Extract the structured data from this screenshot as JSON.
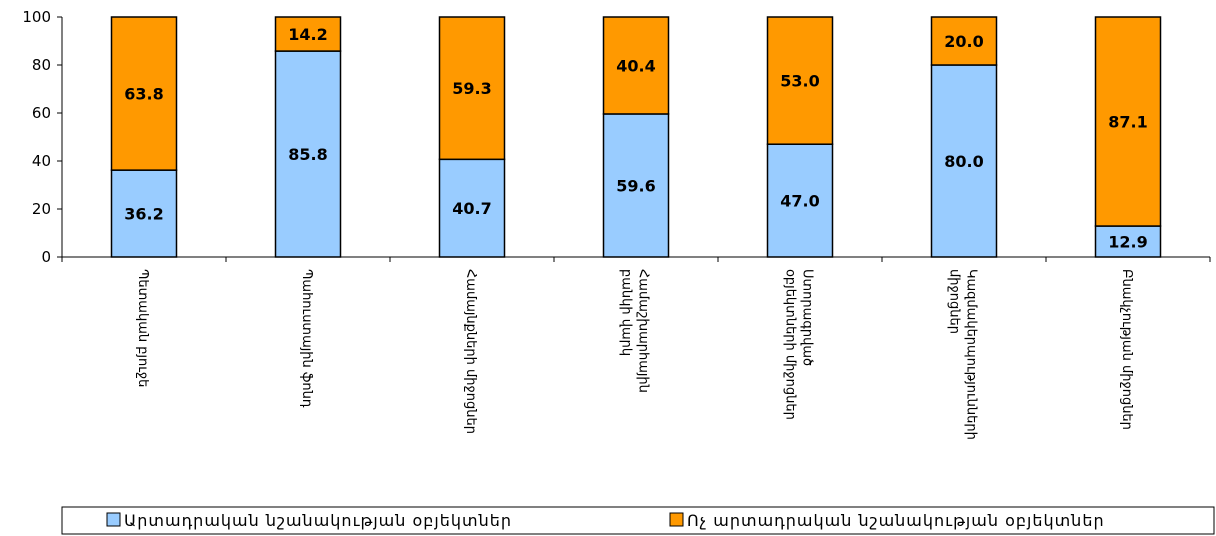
{
  "chart_data": {
    "type": "bar",
    "stacked": true,
    "categories": [
      [
        "Պետական բյուջե"
      ],
      [
        "Պահուստային ֆոնդ"
      ],
      [
        "Համայնքների միջոցներ"
      ],
      [
        "Համաշխարհային",
        "բանկի վարկ"
      ],
      [
        "Ստորագրված",
        "օբյեկտների միջոցներ"
      ],
      [
        "Կազմակերպությունների",
        "միջոցներ"
      ],
      [
        "Բնակչության միջոցներ"
      ]
    ],
    "series": [
      {
        "name": "Արտադրական նշանակության օբյեկտներ",
        "values": [
          36.2,
          85.8,
          40.7,
          59.6,
          47.0,
          80.0,
          12.9
        ],
        "labels": [
          "36.2",
          "85.8",
          "40.7",
          "59.6",
          "47.0",
          "80.0",
          "12.9"
        ],
        "color": "#99ccff"
      },
      {
        "name": "Ոչ արտադրական նշանակության օբյեկտներ",
        "values": [
          63.8,
          14.2,
          59.3,
          40.4,
          53.0,
          20.0,
          87.1
        ],
        "labels": [
          "63.8",
          "14.2",
          "59.3",
          "40.4",
          "53.0",
          "20.0",
          "87.1"
        ],
        "color": "#ff9900"
      }
    ],
    "yticks": [
      "0",
      "20",
      "40",
      "60",
      "80",
      "100"
    ],
    "ylim": [
      0,
      100
    ],
    "grid": false,
    "legend_position": "bottom"
  }
}
